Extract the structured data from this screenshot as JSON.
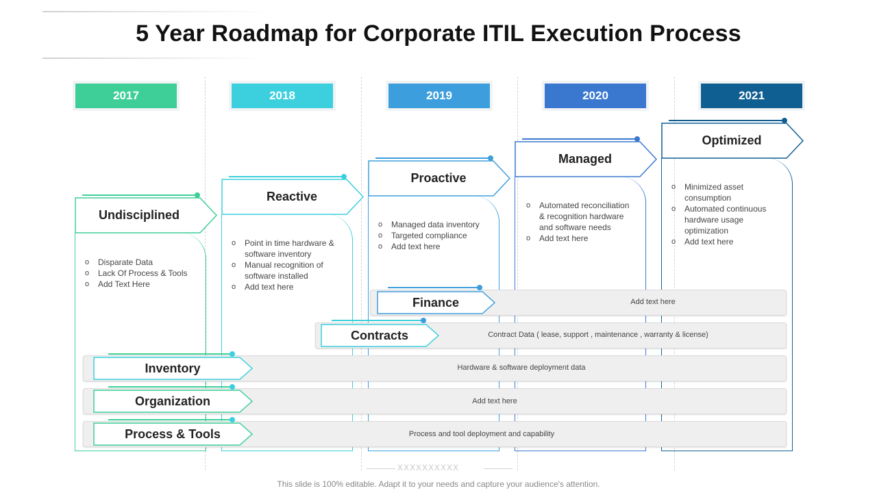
{
  "title": "5 Year Roadmap for Corporate ITIL Execution Process",
  "colors": {
    "y2017": "#3ecf98",
    "y2018": "#3ccfdd",
    "y2019": "#3d9edd",
    "y2020": "#3a78d0",
    "y2021": "#0f5f93"
  },
  "years": [
    "2017",
    "2018",
    "2019",
    "2020",
    "2021"
  ],
  "stages": [
    {
      "label": "Undisciplined",
      "bullets": [
        "Disparate Data",
        "Lack Of Process & Tools",
        "Add Text Here"
      ]
    },
    {
      "label": "Reactive",
      "bullets": [
        "Point in time hardware & software inventory",
        "Manual recognition of software installed",
        "Add text here"
      ]
    },
    {
      "label": "Proactive",
      "bullets": [
        "Managed data inventory",
        "Targeted compliance",
        "Add text here"
      ]
    },
    {
      "label": "Managed",
      "bullets": [
        "Automated reconciliation & recognition hardware and software needs",
        "Add text here"
      ]
    },
    {
      "label": "Optimized",
      "bullets": [
        "Minimized asset consumption",
        "Automated continuous hardware usage optimization",
        "Add text here"
      ]
    }
  ],
  "rows": [
    {
      "label": "Finance",
      "text": "Add text here"
    },
    {
      "label": "Contracts",
      "text": "Contract Data ( lease, support , maintenance , warranty & license)"
    },
    {
      "label": "Inventory",
      "text": "Hardware & software deployment data"
    },
    {
      "label": "Organization",
      "text": "Add text here"
    },
    {
      "label": "Process & Tools",
      "text": "Process and tool deployment and capability"
    }
  ],
  "decoration": "XXXXXXXXXX",
  "footer": "This slide is 100% editable. Adapt it to your needs and capture your audience's attention."
}
